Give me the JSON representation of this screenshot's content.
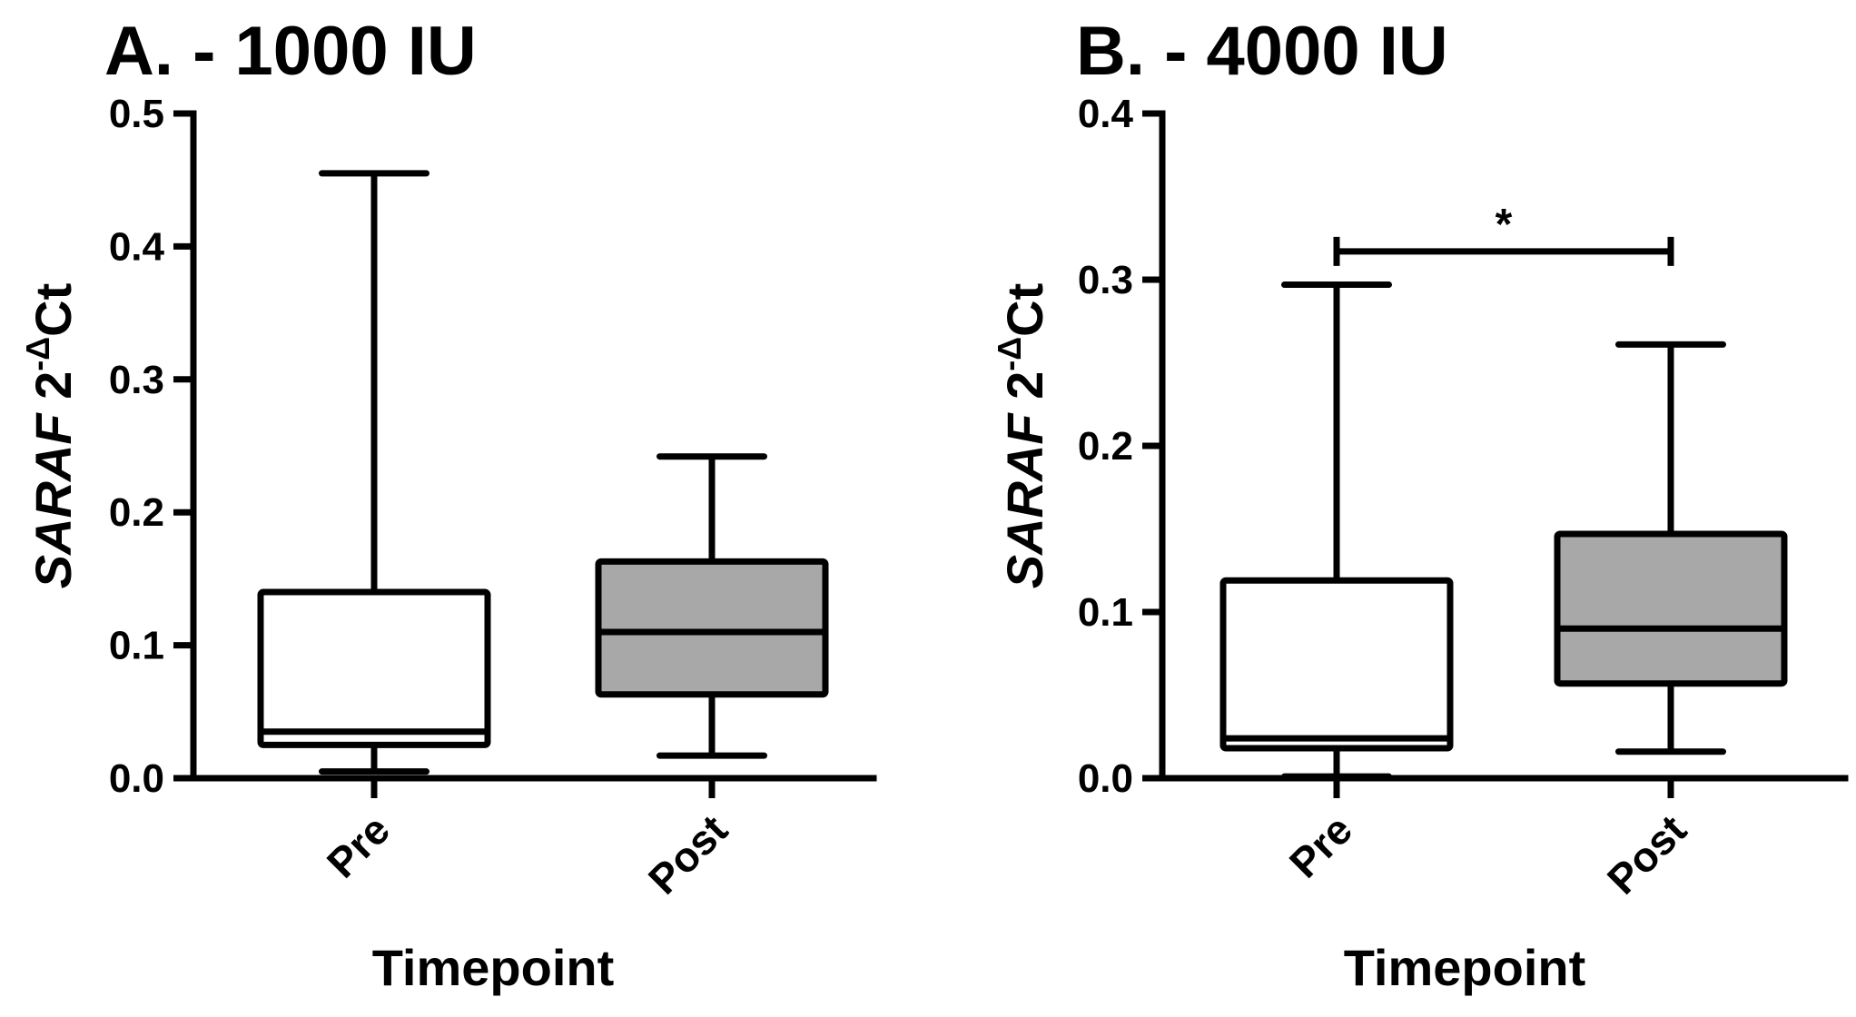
{
  "figure": {
    "background": "#ffffff",
    "ink_color": "#000000"
  },
  "chart_data": [
    {
      "type": "boxplot",
      "title": "A. - 1000 IU",
      "xlabel": "Timepoint",
      "ylabel": {
        "gene": "SARAF",
        "base": " 2",
        "superscript": "-Δ",
        "suffix": "Ct"
      },
      "ylim": [
        0,
        0.5
      ],
      "yticks": [
        0.0,
        0.1,
        0.2,
        0.3,
        0.4,
        0.5
      ],
      "ytick_labels": [
        "0.0",
        "0.1",
        "0.2",
        "0.3",
        "0.4",
        "0.5"
      ],
      "categories": [
        "Pre",
        "Post"
      ],
      "boxes": [
        {
          "label": "Pre",
          "min": 0.005,
          "q1": 0.025,
          "median": 0.035,
          "q3": 0.14,
          "max": 0.455,
          "fill": "#ffffff"
        },
        {
          "label": "Post",
          "min": 0.017,
          "q1": 0.063,
          "median": 0.11,
          "q3": 0.163,
          "max": 0.242,
          "fill": "#a8a8a8"
        }
      ],
      "grid": false,
      "legend": "none"
    },
    {
      "type": "boxplot",
      "title": "B. - 4000 IU",
      "xlabel": "Timepoint",
      "ylabel": {
        "gene": "SARAF",
        "base": " 2",
        "superscript": "-Δ",
        "suffix": "Ct"
      },
      "ylim": [
        0,
        0.4
      ],
      "yticks": [
        0.0,
        0.1,
        0.2,
        0.3,
        0.4
      ],
      "ytick_labels": [
        "0.0",
        "0.1",
        "0.2",
        "0.3",
        "0.4"
      ],
      "categories": [
        "Pre",
        "Post"
      ],
      "boxes": [
        {
          "label": "Pre",
          "min": 0.001,
          "q1": 0.018,
          "median": 0.024,
          "q3": 0.119,
          "max": 0.297,
          "fill": "#ffffff"
        },
        {
          "label": "Post",
          "min": 0.016,
          "q1": 0.057,
          "median": 0.09,
          "q3": 0.147,
          "max": 0.261,
          "fill": "#a8a8a8"
        }
      ],
      "significance": {
        "between": [
          "Pre",
          "Post"
        ],
        "y": 0.317,
        "label": "*"
      },
      "grid": false,
      "legend": "none"
    }
  ]
}
